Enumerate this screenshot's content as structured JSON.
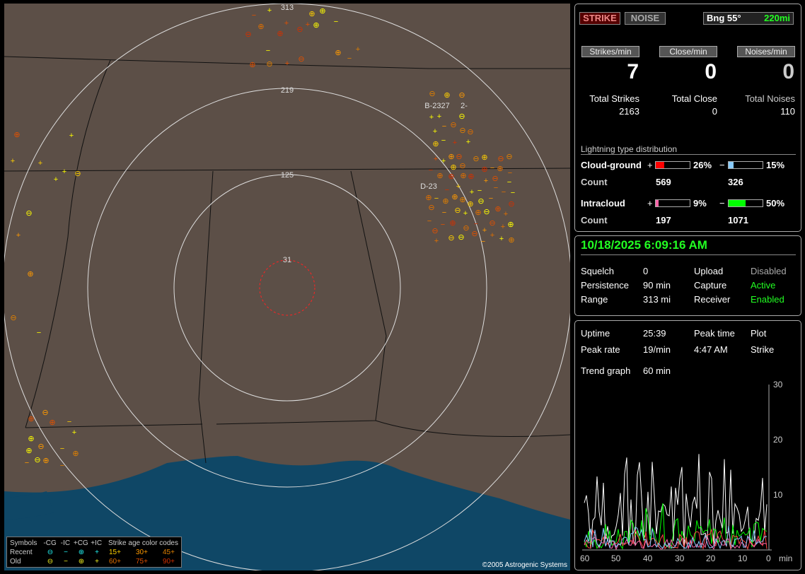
{
  "map": {
    "range_labels": [
      "313",
      "219",
      "125",
      "31"
    ],
    "cluster_labels": [
      "B-2327",
      "2-",
      "D-23"
    ],
    "copyright": "©2005 Astrogenic Systems",
    "legend": {
      "headers": [
        "Symbols",
        "-CG",
        "-IC",
        "+CG",
        "+IC",
        "Strike age color codes"
      ],
      "recent": "Recent",
      "old": "Old",
      "ages_recent": [
        "15+",
        "30+",
        "45+"
      ],
      "ages_old": [
        "60+",
        "75+",
        "90+"
      ],
      "age_colors": [
        "#ffd000",
        "#ff9a00",
        "#e08000",
        "#e07000",
        "#e05000",
        "#d03000"
      ]
    }
  },
  "top": {
    "strike": "STRIKE",
    "noise": "NOISE",
    "bearing": "Bng 55°",
    "distance": "220mi"
  },
  "rates": {
    "strikes_label": "Strikes/min",
    "close_label": "Close/min",
    "noises_label": "Noises/min",
    "strikes": "7",
    "close": "0",
    "noises": "0"
  },
  "totals": {
    "strikes_label": "Total Strikes",
    "close_label": "Total Close",
    "noises_label": "Total Noises",
    "strikes": "2163",
    "close": "0",
    "noises": "110"
  },
  "dist": {
    "title": "Lightning type distribution",
    "cg": "Cloud-ground",
    "ic": "Intracloud",
    "count": "Count",
    "plus": "+",
    "minus": "−",
    "cg_pos_pct": "26%",
    "cg_neg_pct": "15%",
    "ic_pos_pct": "9%",
    "ic_neg_pct": "50%",
    "cg_pos": 26,
    "cg_neg": 15,
    "ic_pos": 9,
    "ic_neg": 50,
    "cg_pos_count": "569",
    "cg_neg_count": "326",
    "ic_pos_count": "197",
    "ic_neg_count": "1071",
    "colors": {
      "cg_pos": "#ff0000",
      "cg_neg": "#88ccff",
      "ic_pos": "#ff66aa",
      "ic_neg": "#00ff00"
    }
  },
  "status": {
    "datetime": "10/18/2025 6:09:16 AM",
    "squelch_label": "Squelch",
    "squelch": "0",
    "persistence_label": "Persistence",
    "persistence": "90 min",
    "range_label": "Range",
    "range": "313 mi",
    "upload_label": "Upload",
    "upload": "Disabled",
    "capture_label": "Capture",
    "capture": "Active",
    "receiver_label": "Receiver",
    "receiver": "Enabled"
  },
  "trend": {
    "uptime_label": "Uptime",
    "uptime": "25:39",
    "peak_time_label": "Peak time",
    "peak_time": "4:47 AM",
    "plot_label": "Plot",
    "plot": "Strike",
    "peak_rate_label": "Peak rate",
    "peak_rate": "19/min",
    "graph_label": "Trend graph",
    "graph": "60 min",
    "y_ticks": [
      "30",
      "20",
      "10"
    ],
    "x_ticks": [
      "60",
      "50",
      "40",
      "30",
      "20",
      "10",
      "0"
    ],
    "x_unit": "min"
  }
}
